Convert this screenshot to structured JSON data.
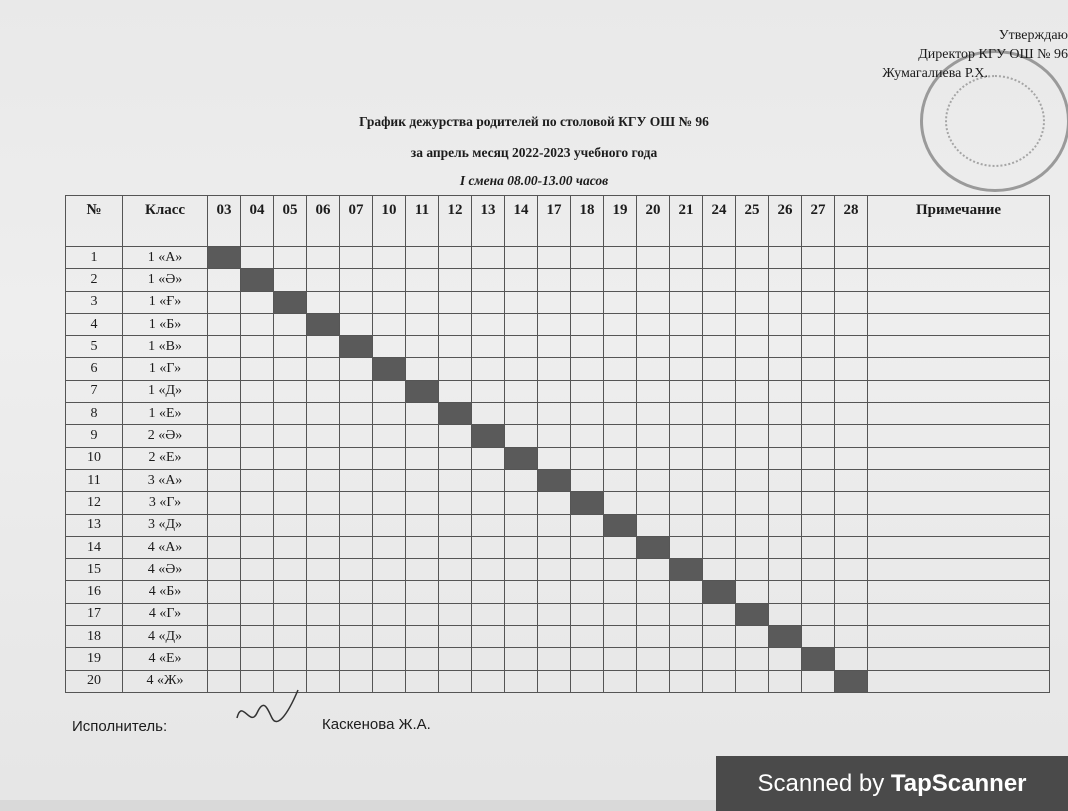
{
  "approval": {
    "line1": "Утверждаю",
    "line2": "Директор КГУ ОШ № 96",
    "line3": "Жумагалиева Р.Х."
  },
  "title": {
    "line1": "График дежурства родителей по столовой КГУ ОШ № 96",
    "line2": "за апрель месяц  2022-2023 учебного года",
    "line3": "I смена 08.00-13.00 часов"
  },
  "table": {
    "headers": {
      "num": "№",
      "class": "Класс",
      "note": "Примечание"
    },
    "dates": [
      "03",
      "04",
      "05",
      "06",
      "07",
      "10",
      "11",
      "12",
      "13",
      "14",
      "17",
      "18",
      "19",
      "20",
      "21",
      "24",
      "25",
      "26",
      "27",
      "28"
    ],
    "rows": [
      {
        "num": "1",
        "class": "1 «А»",
        "duty_date": "03"
      },
      {
        "num": "2",
        "class": "1 «Ә»",
        "duty_date": "04"
      },
      {
        "num": "3",
        "class": "1 «Ғ»",
        "duty_date": "05"
      },
      {
        "num": "4",
        "class": "1 «Б»",
        "duty_date": "06"
      },
      {
        "num": "5",
        "class": "1 «В»",
        "duty_date": "07"
      },
      {
        "num": "6",
        "class": "1 «Г»",
        "duty_date": "10"
      },
      {
        "num": "7",
        "class": "1 «Д»",
        "duty_date": "11"
      },
      {
        "num": "8",
        "class": "1 «Е»",
        "duty_date": "12"
      },
      {
        "num": "9",
        "class": "2 «Ә»",
        "duty_date": "13"
      },
      {
        "num": "10",
        "class": "2 «Е»",
        "duty_date": "14"
      },
      {
        "num": "11",
        "class": "3 «А»",
        "duty_date": "17"
      },
      {
        "num": "12",
        "class": "3 «Г»",
        "duty_date": "18"
      },
      {
        "num": "13",
        "class": "3 «Д»",
        "duty_date": "19"
      },
      {
        "num": "14",
        "class": "4 «А»",
        "duty_date": "20"
      },
      {
        "num": "15",
        "class": "4 «Ә»",
        "duty_date": "21"
      },
      {
        "num": "16",
        "class": "4 «Б»",
        "duty_date": "24"
      },
      {
        "num": "17",
        "class": "4 «Г»",
        "duty_date": "25"
      },
      {
        "num": "18",
        "class": "4 «Д»",
        "duty_date": "26"
      },
      {
        "num": "19",
        "class": "4 «Е»",
        "duty_date": "27"
      },
      {
        "num": "20",
        "class": "4 «Ж»",
        "duty_date": "28"
      }
    ],
    "mark_color": "#5a5a5a"
  },
  "footer": {
    "executor_label": "Исполнитель:",
    "executor_name": "Каскенова Ж.А."
  },
  "banner": {
    "prefix": "Scanned by ",
    "brand": "TapScanner"
  }
}
